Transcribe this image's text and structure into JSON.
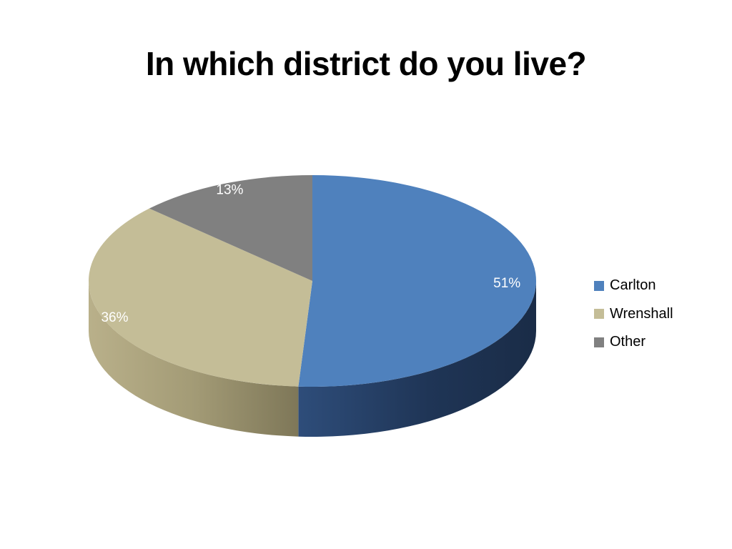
{
  "chart_data": {
    "type": "pie",
    "title": "In which district do you live?",
    "categories": [
      "Carlton",
      "Wrenshall",
      "Other"
    ],
    "values": [
      51,
      36,
      13
    ],
    "data_labels": [
      "51%",
      "36%",
      "13%"
    ],
    "colors": [
      "#4F81BD",
      "#C4BD97",
      "#808080"
    ],
    "style": "3d",
    "legend_position": "right"
  }
}
